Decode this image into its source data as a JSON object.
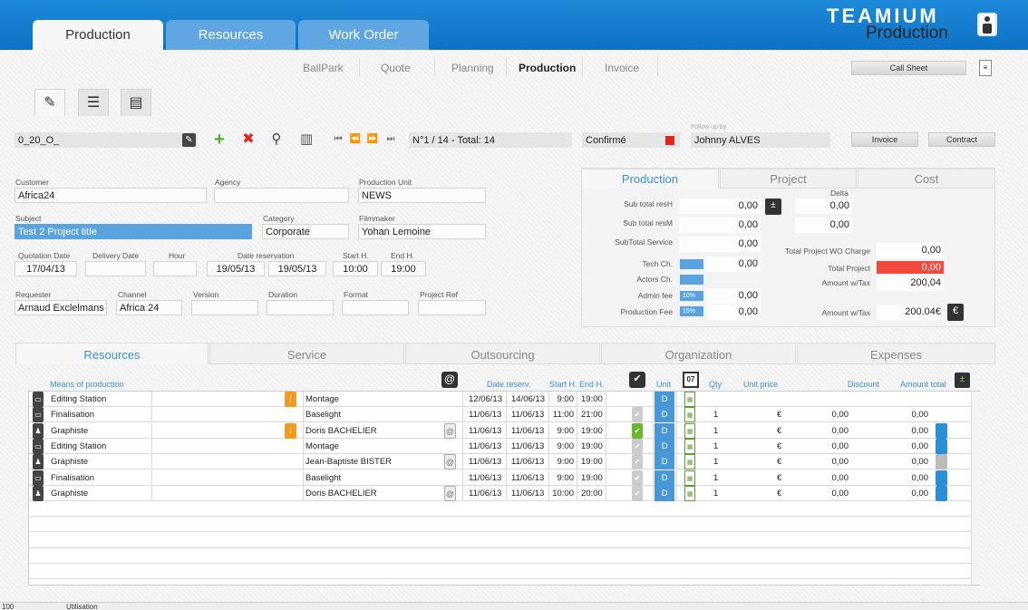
{
  "tabs": [
    "Production",
    "Resources",
    "Work Order"
  ],
  "brand": {
    "line1": "TEAMIUM",
    "line2": "Production"
  },
  "subnav": [
    "BallPark",
    "Quote",
    "Planning",
    "Production",
    "Invoice"
  ],
  "buttons": {
    "call_sheet": "Call Sheet",
    "invoice": "Invoice",
    "contract": "Contract"
  },
  "toolbar": {
    "record_code": "0_20_O_",
    "record_position": "N°1 / 14 - Total: 14",
    "status": "Confirmé",
    "follow_up_label": "Follow up by",
    "follow_up_value": "Johnny ALVES"
  },
  "form": {
    "customer_label": "Customer",
    "customer": "Africa24",
    "agency_label": "Agency",
    "agency": "",
    "production_unit_label": "Production Unit",
    "production_unit": "NEWS",
    "subject_label": "Subject",
    "subject": "Test 2 Project title",
    "category_label": "Category",
    "category": "Corporate",
    "filmmaker_label": "Filmmaker",
    "filmmaker": "Yohan Lemoine",
    "quotation_date_label": "Quotation Date",
    "quotation_date": "17/04/13",
    "delivery_date_label": "Delivery Date",
    "delivery_date": "",
    "hour_label": "Hour",
    "hour": "",
    "date_reservation_label": "Date reservation",
    "date_res_start": "19/05/13",
    "date_res_end": "19/05/13",
    "start_h_label": "Start H.",
    "start_h": "10:00",
    "end_h_label": "End H.",
    "end_h": "19:00",
    "requester_label": "Requester",
    "requester": "Arnaud Exclelmans",
    "channel_label": "Channel",
    "channel": "Africa 24",
    "version_label": "Version",
    "version": "",
    "duration_label": "Duration",
    "duration": "",
    "format_label": "Format",
    "format": "",
    "project_ref_label": "Project Ref",
    "project_ref": ""
  },
  "panel": {
    "tabs": [
      "Production",
      "Project",
      "Cost"
    ],
    "sub_total_resH_label": "Sub total resH",
    "sub_total_resH": "0,00",
    "sub_total_resM_label": "Sub total resM",
    "sub_total_resM": "0,00",
    "subtotal_service_label": "SubTotal Service",
    "subtotal_service": "0,00",
    "tech_ch_label": "Tech Ch.",
    "tech_ch": "0,00",
    "actors_ch_label": "Actors Ch.",
    "admin_fee_label": "Admin fee",
    "admin_fee_pct": "10%",
    "admin_fee": "0,00",
    "production_fee_label": "Production Fee",
    "production_fee_pct": "15%",
    "production_fee": "0,00",
    "delta_label": "Delta",
    "delta1": "0,00",
    "delta2": "0,00",
    "total_wo_charge_label": "Total Project WO Charge",
    "total_wo_charge": "0,00",
    "total_project_label": "Total Project",
    "total_project": "0,00",
    "amount_wtax_label": "Amount w/Tax",
    "amount_wtax": "200,04",
    "amount_wtax2_label": "Amount w/Tax",
    "amount_wtax2": "200.04€"
  },
  "bottom_tabs": [
    "Resources",
    "Service",
    "Outsourcing",
    "Organization",
    "Expenses"
  ],
  "columns": {
    "means": "Means of production",
    "date_reserv": "Date reserv.",
    "start_h": "Start H.",
    "end_h": "End H.",
    "unit": "Unit",
    "qty": "Qty",
    "unit_price": "Unit price",
    "discount": "Discount",
    "amount_total": "Amount total",
    "cal_day": "07"
  },
  "rows": [
    {
      "type": "Editing Station",
      "warn": true,
      "who": "Montage",
      "at": false,
      "d1": "12/06/13",
      "d2": "14/06/13",
      "s": "9:00",
      "e": "19:00",
      "chk": "none",
      "unit": "D",
      "qty": "",
      "cur": "",
      "disc": "",
      "amt": "",
      "pic": "none"
    },
    {
      "type": "Finalisation",
      "warn": false,
      "who": "Baselight",
      "at": false,
      "d1": "11/06/13",
      "d2": "11/06/13",
      "s": "11:00",
      "e": "21:00",
      "chk": "grey",
      "unit": "D",
      "qty": "1",
      "cur": "€",
      "disc": "0,00",
      "amt": "0,00",
      "pic": "none"
    },
    {
      "type": "Graphiste",
      "warn": true,
      "who": "Doris BACHELIER",
      "at": true,
      "d1": "11/06/13",
      "d2": "11/06/13",
      "s": "9:00",
      "e": "19:00",
      "chk": "on",
      "unit": "D",
      "qty": "1",
      "cur": "€",
      "disc": "0,00",
      "amt": "0,00",
      "pic": "blue"
    },
    {
      "type": "Editing Station",
      "warn": false,
      "who": "Montage",
      "at": false,
      "d1": "11/06/13",
      "d2": "11/06/13",
      "s": "9:00",
      "e": "19:00",
      "chk": "grey",
      "unit": "D",
      "qty": "1",
      "cur": "€",
      "disc": "0,00",
      "amt": "0,00",
      "pic": "blue"
    },
    {
      "type": "Graphiste",
      "warn": false,
      "who": "Jean-Baptiste BISTER",
      "at": true,
      "d1": "11/06/13",
      "d2": "11/06/13",
      "s": "9:00",
      "e": "19:00",
      "chk": "grey",
      "unit": "D",
      "qty": "1",
      "cur": "€",
      "disc": "0,00",
      "amt": "0,00",
      "pic": "grey"
    },
    {
      "type": "Finalisation",
      "warn": false,
      "who": "Baselight",
      "at": false,
      "d1": "11/06/13",
      "d2": "11/06/13",
      "s": "9:00",
      "e": "19:00",
      "chk": "grey",
      "unit": "D",
      "qty": "1",
      "cur": "€",
      "disc": "0,00",
      "amt": "0,00",
      "pic": "blue"
    },
    {
      "type": "Graphiste",
      "warn": false,
      "who": "Doris BACHELIER",
      "at": true,
      "d1": "11/06/13",
      "d2": "11/06/13",
      "s": "10:00",
      "e": "20:00",
      "chk": "grey",
      "unit": "D",
      "qty": "1",
      "cur": "€",
      "disc": "0,00",
      "amt": "0,00",
      "pic": "blue"
    }
  ],
  "status_bar": {
    "zoom": "100",
    "mode": "Utilisation"
  },
  "colors": {
    "header": "#1479cc",
    "accent": "#3b8fd6",
    "selected": "#5aa3df",
    "total_red": "#f04a3d"
  }
}
